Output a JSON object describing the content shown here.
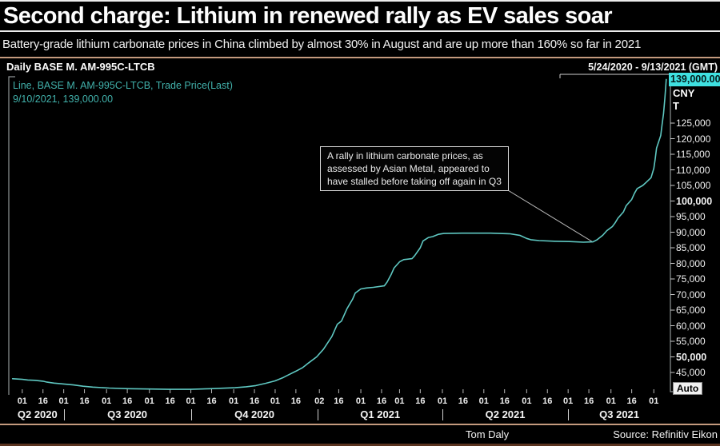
{
  "title": "Second charge: Lithium in renewed rally as EV sales soar",
  "subtitle": "Battery-grade lithium carbonate prices in China climbed by almost 30% in August and are up more than 160% so far in 2021",
  "chart_header": {
    "left": "Daily BASE M. AM-995C-LTCB",
    "right": "5/24/2020 - 9/13/2021 (GMT)"
  },
  "legend": {
    "line1": "Line, BASE M. AM-995C-LTCB, Trade Price(Last)",
    "line2": "9/10/2021, 139,000.00"
  },
  "annotation": {
    "lines": [
      "A rally in lithium carbonate prices, as",
      "assessed by Asian Metal, appeared to",
      "have stalled before taking off again in Q3"
    ],
    "pointer_target": {
      "date": "2021-07-19",
      "value": 86800
    }
  },
  "price_tag": "139,000.00",
  "axis_unit": {
    "currency": "CNY",
    "unit": "T"
  },
  "auto_button": "Auto",
  "footer": {
    "byline": "Tom Daly",
    "source": "Source: Refinitiv Eikon"
  },
  "colors": {
    "background": "#000000",
    "line": "#5fc8c2",
    "legend_text": "#41b1ab",
    "price_tag_bg": "#3fe1e1",
    "tan_rule": "#c49a7e",
    "frame": "#8f9596"
  },
  "chart_data": {
    "type": "line",
    "title": "Daily BASE M. AM-995C-LTCB",
    "ylabel": "CNY / T",
    "x_range": [
      "2020-05-24",
      "2021-09-13"
    ],
    "ylim": [
      38800,
      140600
    ],
    "grid": false,
    "legend_position": "top-left",
    "last_point": {
      "date": "9/10/2021",
      "value": 139000
    },
    "y_ticks": [
      {
        "v": 45000,
        "label": "45,000"
      },
      {
        "v": 50000,
        "label": "50,000",
        "bold": true
      },
      {
        "v": 55000,
        "label": "55,000"
      },
      {
        "v": 60000,
        "label": "60,000"
      },
      {
        "v": 65000,
        "label": "65,000"
      },
      {
        "v": 70000,
        "label": "70,000"
      },
      {
        "v": 75000,
        "label": "75,000"
      },
      {
        "v": 80000,
        "label": "80,000"
      },
      {
        "v": 85000,
        "label": "85,000"
      },
      {
        "v": 90000,
        "label": "90,000"
      },
      {
        "v": 95000,
        "label": "95,000"
      },
      {
        "v": 100000,
        "label": "100,000",
        "bold": true
      },
      {
        "v": 105000,
        "label": "105,000"
      },
      {
        "v": 110000,
        "label": "110,000"
      },
      {
        "v": 115000,
        "label": "115,000"
      },
      {
        "v": 120000,
        "label": "120,000"
      },
      {
        "v": 125000,
        "label": "125,000"
      }
    ],
    "x_ticks": [
      {
        "d": "2020-06-01",
        "label": "01"
      },
      {
        "d": "2020-06-16",
        "label": "16"
      },
      {
        "d": "2020-07-01",
        "label": "01"
      },
      {
        "d": "2020-07-16",
        "label": "16"
      },
      {
        "d": "2020-08-01",
        "label": "01"
      },
      {
        "d": "2020-08-16",
        "label": "16"
      },
      {
        "d": "2020-09-01",
        "label": "01"
      },
      {
        "d": "2020-09-16",
        "label": "16"
      },
      {
        "d": "2020-10-01",
        "label": "01"
      },
      {
        "d": "2020-10-16",
        "label": "16"
      },
      {
        "d": "2020-11-01",
        "label": "01"
      },
      {
        "d": "2020-11-16",
        "label": "16"
      },
      {
        "d": "2020-12-01",
        "label": "01"
      },
      {
        "d": "2020-12-16",
        "label": "16"
      },
      {
        "d": "2021-01-02",
        "label": "02"
      },
      {
        "d": "2021-01-16",
        "label": "16"
      },
      {
        "d": "2021-02-01",
        "label": "01"
      },
      {
        "d": "2021-02-16",
        "label": "16"
      },
      {
        "d": "2021-03-01",
        "label": "01"
      },
      {
        "d": "2021-03-16",
        "label": "16"
      },
      {
        "d": "2021-04-01",
        "label": "01"
      },
      {
        "d": "2021-04-16",
        "label": "16"
      },
      {
        "d": "2021-05-01",
        "label": "01"
      },
      {
        "d": "2021-05-16",
        "label": "16"
      },
      {
        "d": "2021-06-01",
        "label": "01"
      },
      {
        "d": "2021-06-16",
        "label": "16"
      },
      {
        "d": "2021-07-01",
        "label": "01"
      },
      {
        "d": "2021-07-16",
        "label": "16"
      },
      {
        "d": "2021-08-01",
        "label": "01"
      },
      {
        "d": "2021-08-16",
        "label": "16"
      },
      {
        "d": "2021-09-01",
        "label": "01"
      }
    ],
    "quarters": [
      {
        "label": "Q2 2020",
        "start": "2020-05-24",
        "end": "2020-07-01"
      },
      {
        "label": "Q3 2020",
        "start": "2020-07-01",
        "end": "2020-10-01"
      },
      {
        "label": "Q4 2020",
        "start": "2020-10-01",
        "end": "2021-01-01"
      },
      {
        "label": "Q1 2021",
        "start": "2021-01-01",
        "end": "2021-04-01"
      },
      {
        "label": "Q2 2021",
        "start": "2021-04-01",
        "end": "2021-07-01"
      },
      {
        "label": "Q3 2021",
        "start": "2021-07-01",
        "end": "2021-09-13"
      }
    ],
    "series": [
      {
        "name": "BASE M. AM-995C-LTCB, Trade Price(Last)",
        "points": [
          [
            "2020-05-25",
            43000
          ],
          [
            "2020-06-01",
            42800
          ],
          [
            "2020-06-05",
            42600
          ],
          [
            "2020-06-10",
            42500
          ],
          [
            "2020-06-16",
            42200
          ],
          [
            "2020-06-19",
            41900
          ],
          [
            "2020-06-24",
            41600
          ],
          [
            "2020-07-01",
            41300
          ],
          [
            "2020-07-08",
            41000
          ],
          [
            "2020-07-15",
            40600
          ],
          [
            "2020-07-22",
            40300
          ],
          [
            "2020-08-03",
            40000
          ],
          [
            "2020-08-17",
            39800
          ],
          [
            "2020-09-01",
            39700
          ],
          [
            "2020-09-15",
            39600
          ],
          [
            "2020-10-01",
            39600
          ],
          [
            "2020-10-15",
            39800
          ],
          [
            "2020-11-02",
            40100
          ],
          [
            "2020-11-10",
            40400
          ],
          [
            "2020-11-17",
            40800
          ],
          [
            "2020-11-24",
            41500
          ],
          [
            "2020-12-01",
            42300
          ],
          [
            "2020-12-07",
            43400
          ],
          [
            "2020-12-11",
            44300
          ],
          [
            "2020-12-16",
            45400
          ],
          [
            "2020-12-21",
            46600
          ],
          [
            "2020-12-25",
            48000
          ],
          [
            "2020-12-31",
            50000
          ],
          [
            "2021-01-05",
            52500
          ],
          [
            "2021-01-08",
            54500
          ],
          [
            "2021-01-11",
            56500
          ],
          [
            "2021-01-13",
            58500
          ],
          [
            "2021-01-15",
            60500
          ],
          [
            "2021-01-18",
            61500
          ],
          [
            "2021-01-20",
            63500
          ],
          [
            "2021-01-22",
            65500
          ],
          [
            "2021-01-26",
            68500
          ],
          [
            "2021-01-28",
            70500
          ],
          [
            "2021-02-01",
            71800
          ],
          [
            "2021-02-05",
            72100
          ],
          [
            "2021-02-10",
            72300
          ],
          [
            "2021-02-18",
            72800
          ],
          [
            "2021-02-20",
            74000
          ],
          [
            "2021-02-23",
            76500
          ],
          [
            "2021-02-25",
            78500
          ],
          [
            "2021-03-01",
            80500
          ],
          [
            "2021-03-04",
            81200
          ],
          [
            "2021-03-10",
            81500
          ],
          [
            "2021-03-12",
            82500
          ],
          [
            "2021-03-16",
            85000
          ],
          [
            "2021-03-18",
            87200
          ],
          [
            "2021-03-22",
            88300
          ],
          [
            "2021-03-25",
            88600
          ],
          [
            "2021-03-29",
            89300
          ],
          [
            "2021-04-02",
            89600
          ],
          [
            "2021-04-15",
            89700
          ],
          [
            "2021-05-06",
            89700
          ],
          [
            "2021-05-20",
            89500
          ],
          [
            "2021-05-27",
            89000
          ],
          [
            "2021-06-01",
            88000
          ],
          [
            "2021-06-04",
            87600
          ],
          [
            "2021-06-10",
            87300
          ],
          [
            "2021-06-21",
            87100
          ],
          [
            "2021-07-02",
            87000
          ],
          [
            "2021-07-12",
            86800
          ],
          [
            "2021-07-19",
            86900
          ],
          [
            "2021-07-22",
            87600
          ],
          [
            "2021-07-26",
            89000
          ],
          [
            "2021-07-29",
            90500
          ],
          [
            "2021-08-02",
            91800
          ],
          [
            "2021-08-04",
            93000
          ],
          [
            "2021-08-06",
            94500
          ],
          [
            "2021-08-10",
            96500
          ],
          [
            "2021-08-12",
            98500
          ],
          [
            "2021-08-16",
            100500
          ],
          [
            "2021-08-18",
            102500
          ],
          [
            "2021-08-20",
            104000
          ],
          [
            "2021-08-24",
            105000
          ],
          [
            "2021-08-26",
            105800
          ],
          [
            "2021-08-30",
            107500
          ],
          [
            "2021-09-01",
            110500
          ],
          [
            "2021-09-02",
            113500
          ],
          [
            "2021-09-03",
            117000
          ],
          [
            "2021-09-06",
            121000
          ],
          [
            "2021-09-07",
            124500
          ],
          [
            "2021-09-08",
            128000
          ],
          [
            "2021-09-09",
            133000
          ],
          [
            "2021-09-10",
            139000
          ]
        ]
      }
    ]
  }
}
